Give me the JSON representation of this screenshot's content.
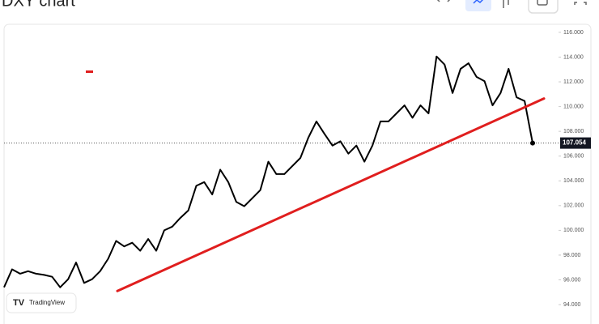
{
  "chart_data": {
    "type": "line",
    "title": "DXY chart",
    "watermark": "TradingView",
    "color": "#000000",
    "values": [
      95.4,
      96.85,
      96.5,
      96.7,
      96.5,
      96.4,
      96.25,
      95.4,
      96.05,
      97.4,
      95.75,
      96.05,
      96.7,
      97.7,
      99.15,
      98.7,
      99.0,
      98.35,
      99.3,
      98.35,
      100.0,
      100.3,
      101.0,
      101.6,
      103.6,
      103.9,
      102.9,
      104.9,
      103.9,
      102.3,
      101.95,
      102.6,
      103.25,
      105.55,
      104.55,
      104.55,
      105.2,
      105.85,
      107.5,
      108.8,
      107.8,
      106.85,
      107.2,
      106.2,
      106.85,
      105.55,
      106.85,
      108.8,
      108.8,
      109.45,
      110.1,
      109.1,
      110.1,
      109.45,
      114.05,
      113.4,
      111.1,
      113.05,
      113.5,
      112.4,
      112.05,
      110.1,
      111.1,
      113.05,
      110.75,
      110.45,
      107.054
    ],
    "trendline": {
      "color": "#e01e1e",
      "start": 95.1,
      "end": 110.65
    },
    "ylim": [
      92.76,
      116.65
    ],
    "yticks": [
      {
        "value": 94,
        "label": "94.000"
      },
      {
        "value": 96,
        "label": "96.000"
      },
      {
        "value": 98,
        "label": "98.000"
      },
      {
        "value": 100,
        "label": "100.000"
      },
      {
        "value": 102,
        "label": "102.000"
      },
      {
        "value": 104,
        "label": "104.000"
      },
      {
        "value": 106,
        "label": "106.000"
      },
      {
        "value": 108,
        "label": "108.000"
      },
      {
        "value": 110,
        "label": "110.000"
      },
      {
        "value": 112,
        "label": "112.000"
      },
      {
        "value": 114,
        "label": "114.000"
      },
      {
        "value": 116,
        "label": "116.000"
      }
    ]
  }
}
